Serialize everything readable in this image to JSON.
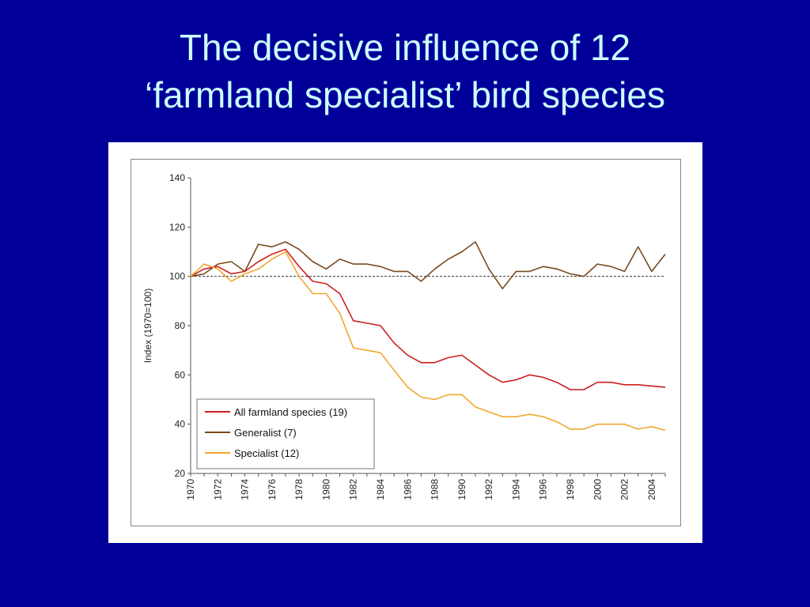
{
  "slide": {
    "title_line1": "The decisive influence of 12",
    "title_line2": "‘farmland specialist’ bird species",
    "background_color": "#000099",
    "title_color": "#CCFFFF"
  },
  "chart_data": {
    "type": "line",
    "title": "",
    "xlabel": "",
    "ylabel": "Index (1970=100)",
    "xlim": [
      1970,
      2005
    ],
    "ylim": [
      20,
      140
    ],
    "yticks": [
      20,
      40,
      60,
      80,
      100,
      120,
      140
    ],
    "xticks": [
      1970,
      1972,
      1974,
      1976,
      1978,
      1980,
      1982,
      1984,
      1986,
      1988,
      1990,
      1992,
      1994,
      1996,
      1998,
      2000,
      2002,
      2004
    ],
    "grid": false,
    "reference_line": 100,
    "legend_position": "bottom-left",
    "x": [
      1970,
      1971,
      1972,
      1973,
      1974,
      1975,
      1976,
      1977,
      1978,
      1979,
      1980,
      1981,
      1982,
      1983,
      1984,
      1985,
      1986,
      1987,
      1988,
      1989,
      1990,
      1991,
      1992,
      1993,
      1994,
      1995,
      1996,
      1997,
      1998,
      1999,
      2000,
      2001,
      2002,
      2003,
      2004,
      2005
    ],
    "series": [
      {
        "name": "All farmland species (19)",
        "color": "#CC1F1F",
        "values": [
          100,
          103,
          104,
          101,
          102,
          106,
          109,
          111,
          104,
          98,
          97,
          93,
          82,
          81,
          80,
          73,
          68,
          65,
          65,
          67,
          68,
          64,
          60,
          57,
          58,
          60,
          59,
          57,
          54,
          54,
          57,
          57,
          56,
          56,
          55.5,
          55
        ]
      },
      {
        "name": "Generalist (7)",
        "color": "#7A4A1E",
        "values": [
          100,
          101,
          105,
          106,
          102,
          113,
          112,
          114,
          111,
          106,
          103,
          107,
          105,
          105,
          104,
          102,
          102,
          98,
          103,
          107,
          110,
          114,
          103,
          95,
          102,
          102,
          104,
          103,
          101,
          100,
          105,
          104,
          102,
          112,
          102,
          109
        ]
      },
      {
        "name": "Specialist (12)",
        "color": "#F0A830",
        "values": [
          100,
          105,
          103,
          98,
          101,
          103,
          107,
          110,
          100,
          93,
          93,
          85,
          71,
          70,
          69,
          62,
          55,
          51,
          50,
          52,
          52,
          47,
          45,
          43,
          43,
          44,
          43,
          41,
          38,
          38,
          40,
          40,
          40,
          38,
          39,
          37.5
        ]
      }
    ]
  }
}
